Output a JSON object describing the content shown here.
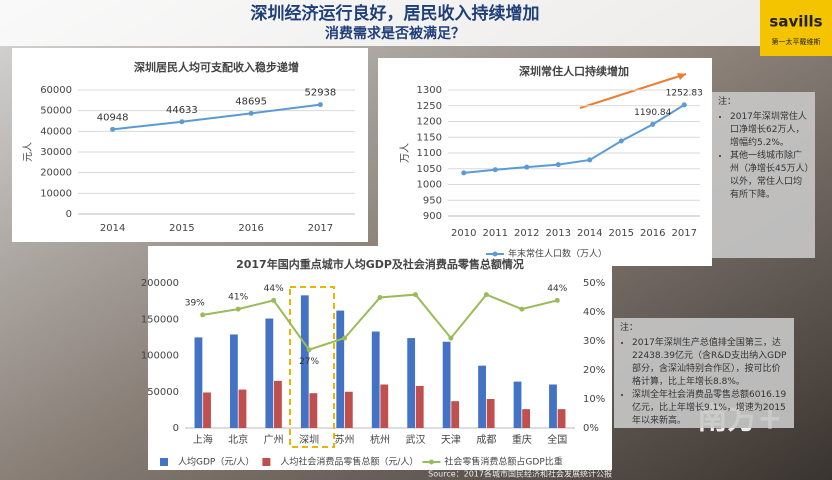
{
  "slide": {
    "title": "深圳经济运行良好，居民收入持续增加",
    "subtitle": "消费需求是否被满足？",
    "logo": "savills",
    "logo_sub": "第一太平戴维斯",
    "watermark": "南方+",
    "source": "Source：2017各城市国民经济和社会发展统计公报",
    "note1": {
      "heading": "注：",
      "items": [
        "2017年深圳常住人口净增长62万人，增幅约5.2%。",
        "其他一线城市除广州（净增长45万人）以外，常住人口均有所下降。"
      ]
    },
    "note2": {
      "heading": "注：",
      "items": [
        "2017年深圳生产总值排全国第三，达22438.39亿元（含R&D支出纳入GDP部分，含深汕特别合作区），按可比价格计算，比上年增长8.8%。",
        "深圳全年社会消费品零售总额6016.19亿元，比上年增长9.1%，增速为2015年以来新高。"
      ]
    }
  },
  "chart_data": [
    {
      "type": "line",
      "title": "深圳居民人均可支配收入稳步递增",
      "y_label": "元人",
      "categories": [
        "2014",
        "2015",
        "2016",
        "2017"
      ],
      "values": [
        40948,
        44633,
        48695,
        52938
      ],
      "color": "#5b9bd5",
      "show_values": true,
      "ylim": [
        0,
        60000
      ],
      "yticks": [
        0,
        10000,
        20000,
        30000,
        40000,
        50000,
        60000
      ],
      "grid": true
    },
    {
      "type": "line",
      "title": "深圳常住人口持续增加",
      "y_label": "万人",
      "categories": [
        "2010",
        "2011",
        "2012",
        "2013",
        "2014",
        "2015",
        "2016",
        "2017"
      ],
      "series": [
        {
          "name": "年末常住人口数（万人）",
          "color": "#5b9bd5",
          "values": [
            1037,
            1047,
            1055,
            1063,
            1078,
            1138,
            1190.84,
            1252.83
          ],
          "value_labels": [
            null,
            null,
            null,
            null,
            null,
            null,
            "1190.84",
            "1252.83"
          ]
        }
      ],
      "ylim": [
        900,
        1300
      ],
      "yticks": [
        900,
        950,
        1000,
        1050,
        1100,
        1150,
        1200,
        1250,
        1300
      ],
      "grid": true,
      "legend": "bottom"
    },
    {
      "type": "bar",
      "title": "2017年国内重点城市人均GDP及社会消费品零售总额情况",
      "categories": [
        "上海",
        "北京",
        "广州",
        "深圳",
        "苏州",
        "杭州",
        "武汉",
        "天津",
        "成都",
        "重庆",
        "全国"
      ],
      "series": [
        {
          "name": "人均GDP（元/人）",
          "color": "#4472c4",
          "values": [
            125000,
            129000,
            151000,
            183000,
            162000,
            133000,
            124000,
            119000,
            86000,
            64000,
            60000
          ]
        },
        {
          "name": "人均社会消费品零售总额（元/人）",
          "color": "#c0504d",
          "values": [
            49000,
            53000,
            65000,
            48000,
            50000,
            60000,
            58000,
            37000,
            40000,
            26000,
            26000
          ]
        },
        {
          "name": "社会零售消费总额占GDP比重",
          "color": "#9bbb59",
          "type": "line",
          "axis": "y2",
          "values": [
            39,
            41,
            44,
            27,
            31,
            45,
            46,
            31,
            46,
            41,
            44
          ],
          "value_labels": [
            "39%",
            "41%",
            "44%",
            "27%",
            null,
            null,
            null,
            null,
            null,
            null,
            "44%"
          ]
        }
      ],
      "ylim": [
        0,
        200000
      ],
      "yticks": [
        0,
        50000,
        100000,
        150000,
        200000
      ],
      "y2lim": [
        0,
        50
      ],
      "y2ticks": [
        {
          "value": 0,
          "label": "0%"
        },
        {
          "value": 10,
          "label": "10%"
        },
        {
          "value": 20,
          "label": "20%"
        },
        {
          "value": 30,
          "label": "30%"
        },
        {
          "value": 40,
          "label": "40%"
        },
        {
          "value": 50,
          "label": "50%"
        }
      ],
      "grid": false,
      "legend": "bottom"
    }
  ]
}
